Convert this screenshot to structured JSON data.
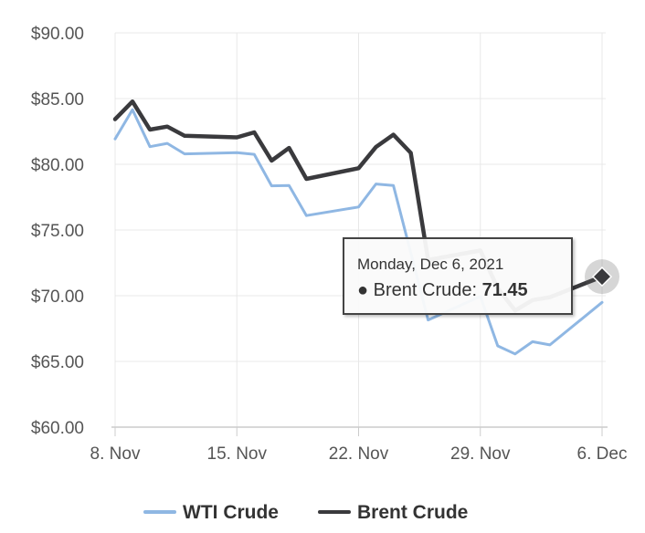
{
  "chart_data": {
    "type": "line",
    "title": "",
    "xlabel": "",
    "ylabel": "",
    "ylim": [
      60,
      90
    ],
    "yticks": [
      "$60.00",
      "$65.00",
      "$70.00",
      "$75.00",
      "$80.00",
      "$85.00",
      "$90.00"
    ],
    "xticks": [
      {
        "label": "8. Nov",
        "date": "2021-11-08"
      },
      {
        "label": "15. Nov",
        "date": "2021-11-15"
      },
      {
        "label": "22. Nov",
        "date": "2021-11-22"
      },
      {
        "label": "29. Nov",
        "date": "2021-11-29"
      },
      {
        "label": "6. Dec",
        "date": "2021-12-06"
      }
    ],
    "grid": true,
    "legend_position": "bottom-center",
    "series": [
      {
        "name": "WTI Crude",
        "color": "#8fb7e3",
        "points": [
          [
            "2021-11-08",
            81.93
          ],
          [
            "2021-11-09",
            84.15
          ],
          [
            "2021-11-10",
            81.34
          ],
          [
            "2021-11-11",
            81.59
          ],
          [
            "2021-11-12",
            80.79
          ],
          [
            "2021-11-15",
            80.88
          ],
          [
            "2021-11-16",
            80.76
          ],
          [
            "2021-11-17",
            78.36
          ],
          [
            "2021-11-18",
            78.39
          ],
          [
            "2021-11-19",
            76.1
          ],
          [
            "2021-11-22",
            76.75
          ],
          [
            "2021-11-23",
            78.5
          ],
          [
            "2021-11-24",
            78.39
          ],
          [
            "2021-11-26",
            68.15
          ],
          [
            "2021-11-29",
            69.95
          ],
          [
            "2021-11-30",
            66.18
          ],
          [
            "2021-12-01",
            65.57
          ],
          [
            "2021-12-02",
            66.5
          ],
          [
            "2021-12-03",
            66.26
          ],
          [
            "2021-12-06",
            69.49
          ]
        ]
      },
      {
        "name": "Brent Crude",
        "color": "#3a3a3d",
        "points": [
          [
            "2021-11-08",
            83.43
          ],
          [
            "2021-11-09",
            84.78
          ],
          [
            "2021-11-10",
            82.64
          ],
          [
            "2021-11-11",
            82.87
          ],
          [
            "2021-11-12",
            82.17
          ],
          [
            "2021-11-15",
            82.05
          ],
          [
            "2021-11-16",
            82.43
          ],
          [
            "2021-11-17",
            80.28
          ],
          [
            "2021-11-18",
            81.24
          ],
          [
            "2021-11-19",
            78.89
          ],
          [
            "2021-11-22",
            79.7
          ],
          [
            "2021-11-23",
            81.31
          ],
          [
            "2021-11-24",
            82.25
          ],
          [
            "2021-11-25",
            80.87
          ],
          [
            "2021-11-26",
            72.72
          ],
          [
            "2021-11-29",
            73.44
          ],
          [
            "2021-11-30",
            70.57
          ],
          [
            "2021-12-01",
            68.87
          ],
          [
            "2021-12-02",
            69.67
          ],
          [
            "2021-12-03",
            69.88
          ],
          [
            "2021-12-06",
            71.45
          ]
        ]
      }
    ],
    "tooltip": {
      "date": "Monday, Dec 6, 2021",
      "series": "Brent Crude",
      "value": "71.45"
    }
  }
}
